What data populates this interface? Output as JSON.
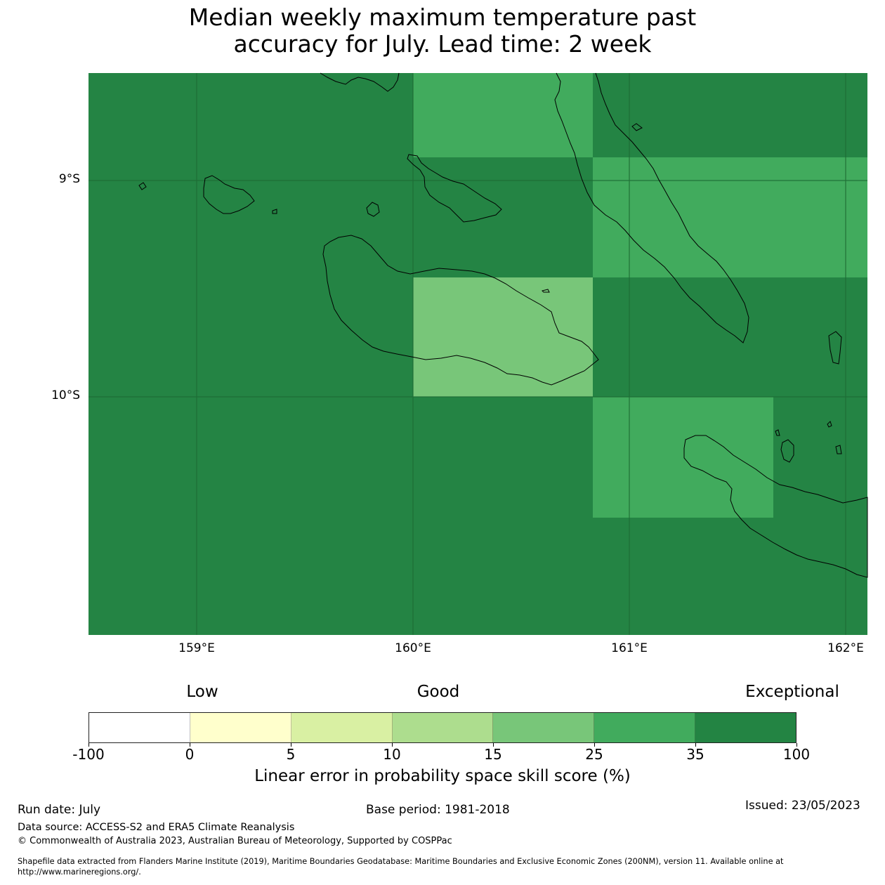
{
  "title": {
    "line1": "Median weekly maximum temperature past",
    "line2": "accuracy for July. Lead time: 2 week"
  },
  "map": {
    "lat_labels": [
      "9°S",
      "10°S"
    ],
    "lon_labels": [
      "159°E",
      "160°E",
      "161°E",
      "162°E"
    ],
    "ocean_color": "#248444",
    "coastline_color": "#000000",
    "gridline_color": "#1e6b35"
  },
  "colorbar": {
    "categories": [
      "Low",
      "Good",
      "Exceptional"
    ],
    "ticks": [
      "-100",
      "0",
      "5",
      "10",
      "15",
      "25",
      "35",
      "100"
    ],
    "colors": [
      "#ffffff",
      "#ffffcc",
      "#d9f0a3",
      "#addd8e",
      "#78c679",
      "#41ab5d",
      "#238443"
    ],
    "label": "Linear error in probability space skill score (%)"
  },
  "footer": {
    "run_date": "Run date: July",
    "base_period": "Base period: 1981-2018",
    "issued": "Issued: 23/05/2023",
    "data_source": "Data source: ACCESS-S2 and ERA5 Climate Reanalysis",
    "copyright": "© Commonwealth of Australia 2023, Australian Bureau of Meteorology, Supported by COSPPac",
    "shapefile_line1": "Shapefile data extracted from Flanders Marine Institute (2019), Maritime Boundaries Geodatabase: Maritime Boundaries and Exclusive Economic Zones (200NM), version 11. Available online at",
    "shapefile_line2": "http://www.marineregions.org/."
  }
}
